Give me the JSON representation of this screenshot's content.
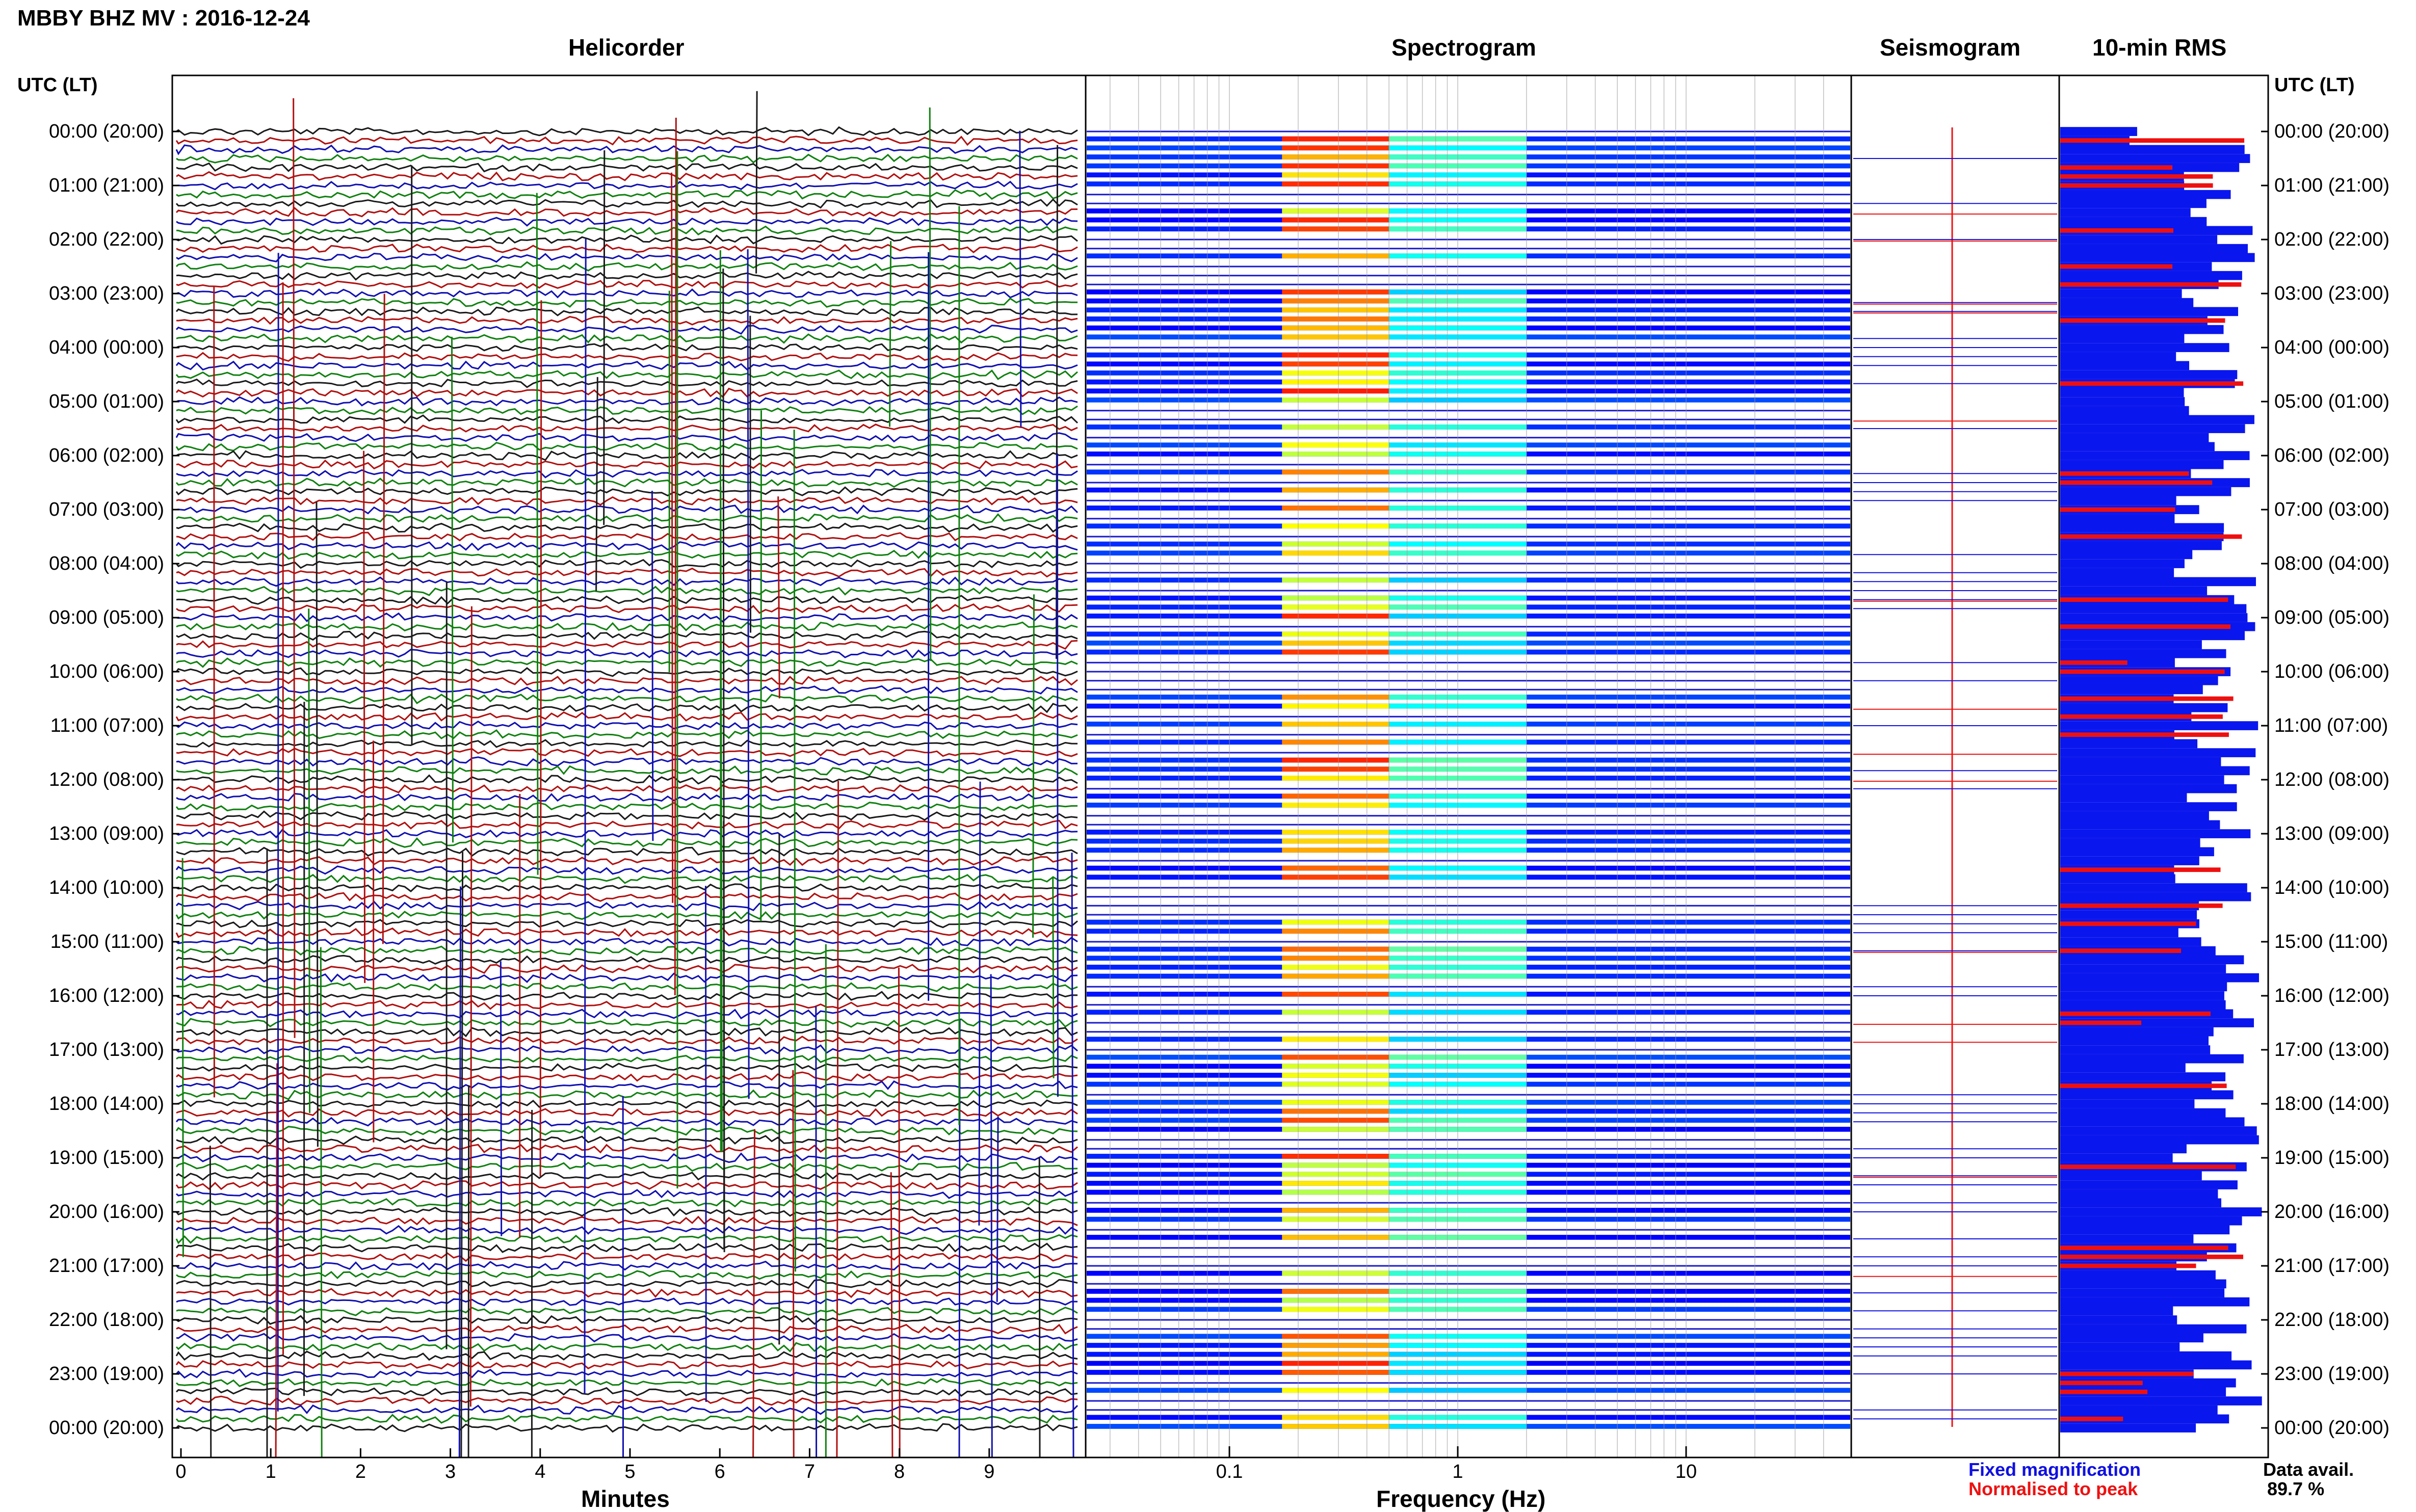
{
  "header": {
    "title": "MBBY BHZ MV : 2016-12-24"
  },
  "panels": {
    "helicorder_title": "Helicorder",
    "spectrogram_title": "Spectrogram",
    "seismogram_title": "Seismogram",
    "rms_title": "10-min RMS"
  },
  "axes": {
    "utc_label_left": "UTC (LT)",
    "utc_label_right": "UTC (LT)",
    "minutes_label": "Minutes",
    "frequency_label": "Frequency (Hz)",
    "hour_labels": [
      "00:00 (20:00)",
      "01:00 (21:00)",
      "02:00 (22:00)",
      "03:00 (23:00)",
      "04:00 (00:00)",
      "05:00 (01:00)",
      "06:00 (02:00)",
      "07:00 (03:00)",
      "08:00 (04:00)",
      "09:00 (05:00)",
      "10:00 (06:00)",
      "11:00 (07:00)",
      "12:00 (08:00)",
      "13:00 (09:00)",
      "14:00 (10:00)",
      "15:00 (11:00)",
      "16:00 (12:00)",
      "17:00 (13:00)",
      "18:00 (14:00)",
      "19:00 (15:00)",
      "20:00 (16:00)",
      "21:00 (17:00)",
      "22:00 (18:00)",
      "23:00 (19:00)",
      "00:00 (20:00)"
    ],
    "minute_ticks": [
      "0",
      "1",
      "2",
      "3",
      "4",
      "5",
      "6",
      "7",
      "8",
      "9"
    ],
    "freq_ticks": [
      "0.1",
      "1",
      "10"
    ]
  },
  "legend": {
    "fixed_label": "Fixed magnification",
    "fixed_color": "#1010e0",
    "normalised_label": "Normalised to peak",
    "normalised_color": "#ee1111"
  },
  "availability": {
    "label": "Data avail.",
    "value": "89.7 %"
  },
  "colors": {
    "trace_colors": [
      "#1a1a1a",
      "#b01010",
      "#1010b0",
      "#108010"
    ],
    "rms_fixed": "#0a16ee",
    "rms_norm": "#ee1010"
  },
  "chart_data": [
    {
      "type": "line",
      "title": "Helicorder",
      "xlabel": "Minutes",
      "ylabel": "UTC (LT)",
      "xlim": [
        0,
        10
      ],
      "x_ticks": [
        0,
        1,
        2,
        3,
        4,
        5,
        6,
        7,
        8,
        9
      ],
      "rows": 145,
      "note_series": "one trace per 10-minute row; trace colours cycle black, red, blue, green"
    },
    {
      "type": "heatmap",
      "title": "Spectrogram",
      "xlabel": "Frequency (Hz)",
      "x_scale": "log",
      "xlim": [
        0.025,
        50
      ],
      "x_ticks": [
        0.1,
        1,
        10
      ],
      "colormap": "jet",
      "peak_band_hz": [
        0.17,
        0.5
      ]
    },
    {
      "type": "line",
      "title": "Seismogram",
      "series": [
        {
          "name": "Fixed magnification",
          "color": "#1010e0"
        },
        {
          "name": "Normalised to peak",
          "color": "#ee1111"
        }
      ]
    },
    {
      "type": "bar",
      "title": "10-min RMS",
      "orientation": "horizontal",
      "series": [
        {
          "name": "Fixed magnification",
          "color": "#0a16ee",
          "values": [
            0.5,
            0.55,
            0.98,
            0.98,
            0.98,
            0.98,
            0.98,
            0.98,
            0.95,
            0.98,
            0.98,
            0.98,
            0.98,
            0.98,
            0.98,
            0.98,
            0.98,
            0.98,
            0.98,
            0.98,
            0.98,
            0.98,
            0.98,
            0.98,
            0.98,
            0.98,
            0.98,
            0.98,
            0.98,
            0.98,
            0.98,
            0.98,
            0.98,
            0.98,
            0.98,
            0.98,
            0.98,
            0.98,
            0.98,
            0.98,
            0.98,
            0.98,
            0.98,
            0.98,
            0.98,
            0.98,
            0.98,
            0.98,
            0.98,
            0.98,
            0.98,
            0.98,
            0.98,
            0.98,
            0.98,
            0.98,
            0.98,
            0.98,
            0.98,
            0.98,
            0.98,
            0.98,
            0.98,
            0.98,
            0.98,
            0.98,
            0.98,
            0.98,
            0.98,
            0.98,
            0.98,
            0.98,
            0.98,
            0.98,
            0.98,
            0.98,
            0.98,
            0.98,
            0.98,
            0.98,
            0.98,
            0.98,
            0.98,
            0.98,
            0.98,
            0.98,
            0.98,
            0.98,
            0.98,
            0.98,
            0.98,
            0.98,
            0.98,
            0.98,
            0.98,
            0.98,
            0.98,
            0.98,
            0.98,
            0.98,
            0.98,
            0.98,
            0.98,
            0.98,
            0.98,
            0.98,
            0.98,
            0.98,
            0.98,
            0.98,
            0.98,
            0.98,
            0.98,
            0.98,
            0.98,
            0.98,
            0.98,
            0.98,
            0.98,
            0.98,
            0.98,
            0.98,
            0.98,
            0.98,
            0.98,
            0.98,
            0.98,
            0.98,
            0.98,
            0.98,
            0.98,
            0.98,
            0.98,
            0.98,
            0.98,
            0.98,
            0.98,
            0.98,
            0.98,
            0.98,
            0.98,
            0.98,
            0.98,
            0.98
          ]
        },
        {
          "name": "Normalised to peak",
          "color": "#ee1010"
        }
      ]
    }
  ]
}
